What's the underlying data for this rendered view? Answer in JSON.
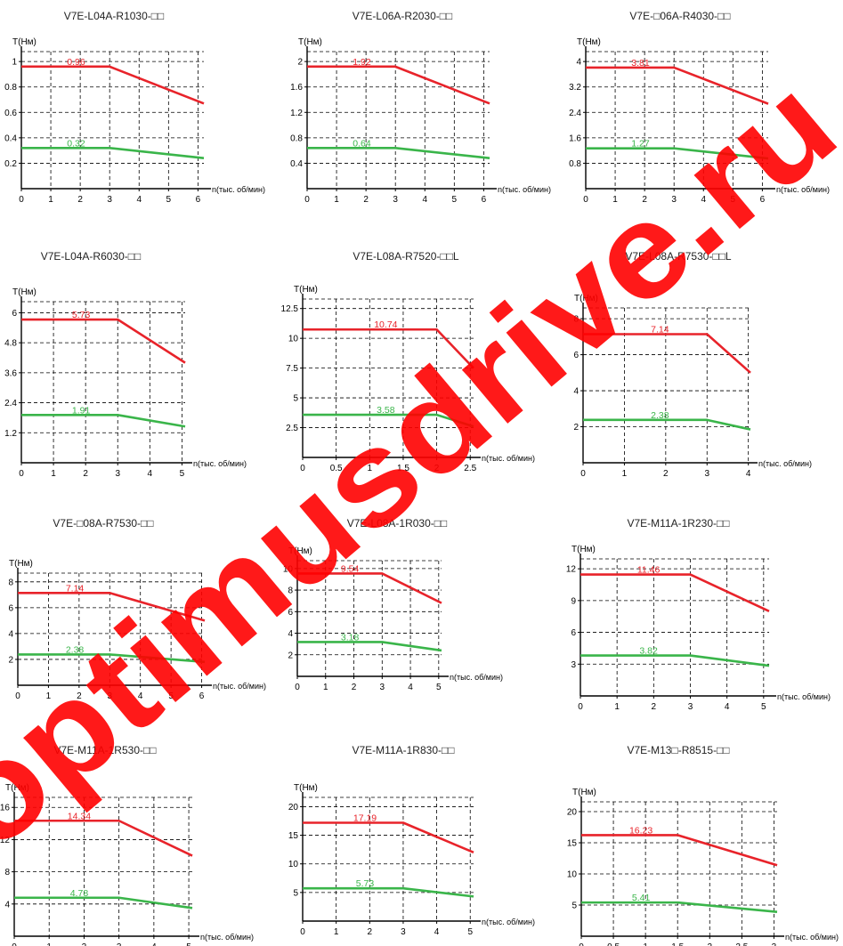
{
  "colors": {
    "upper_curve": "#e8232a",
    "lower_curve": "#3ab54a",
    "axis": "#000000",
    "grid": "#000000",
    "title": "#222222",
    "watermark": "#ff0000"
  },
  "watermark": {
    "text": "optimusdrive.ru"
  },
  "chart_data": [
    {
      "type": "line",
      "title": "V7E-L04A-R1030-□□",
      "ylabel": "T(Нм)",
      "xlabel": "n(тыс. об/мин)",
      "x_ticks": [
        0,
        1,
        2,
        3,
        4,
        5,
        6
      ],
      "y_ticks": [
        0.2,
        0.4,
        0.6,
        0.8,
        1
      ],
      "xlim": [
        0,
        6.2
      ],
      "ylim": [
        0,
        1.05
      ],
      "series": [
        {
          "color": "red",
          "x": [
            0,
            3,
            6.2
          ],
          "y": [
            0.96,
            0.96,
            0.67
          ]
        },
        {
          "color": "green",
          "x": [
            0,
            3,
            6.2
          ],
          "y": [
            0.32,
            0.32,
            0.24
          ]
        }
      ],
      "annotations": [
        "0.96",
        "0.32"
      ]
    },
    {
      "type": "line",
      "title": "V7E-L06A-R2030-□□",
      "ylabel": "T(Нм)",
      "xlabel": "n(тыс. об/мин)",
      "x_ticks": [
        0,
        1,
        2,
        3,
        4,
        5,
        6
      ],
      "y_ticks": [
        0.4,
        0.8,
        1.2,
        1.6,
        2
      ],
      "xlim": [
        0,
        6.2
      ],
      "ylim": [
        0,
        2.1
      ],
      "series": [
        {
          "color": "red",
          "x": [
            0,
            3,
            6.2
          ],
          "y": [
            1.92,
            1.92,
            1.34
          ]
        },
        {
          "color": "green",
          "x": [
            0,
            3,
            6.2
          ],
          "y": [
            0.64,
            0.64,
            0.48
          ]
        }
      ],
      "annotations": [
        "1.92",
        "0.64"
      ]
    },
    {
      "type": "line",
      "title": "V7E-□06A-R4030-□□",
      "ylabel": "T(Нм)",
      "xlabel": "n(тыс. об/мин)",
      "x_ticks": [
        0,
        1,
        2,
        3,
        4,
        5,
        6
      ],
      "y_ticks": [
        0.8,
        1.6,
        2.4,
        3.2,
        4
      ],
      "xlim": [
        0,
        6.2
      ],
      "ylim": [
        0,
        4.2
      ],
      "series": [
        {
          "color": "red",
          "x": [
            0,
            3,
            6.2
          ],
          "y": [
            3.81,
            3.81,
            2.67
          ]
        },
        {
          "color": "green",
          "x": [
            0,
            3,
            6.2
          ],
          "y": [
            1.27,
            1.27,
            0.95
          ]
        }
      ],
      "annotations": [
        "3.81",
        "1.27"
      ]
    },
    {
      "type": "line",
      "title": "V7E-L04A-R6030-□□",
      "ylabel": "T(Нм)",
      "xlabel": "n(тыс. об/мин)",
      "x_ticks": [
        0,
        1,
        2,
        3,
        4,
        5
      ],
      "y_ticks": [
        1.2,
        2.4,
        3.6,
        4.8,
        6
      ],
      "xlim": [
        0,
        5.1
      ],
      "ylim": [
        0,
        6.3
      ],
      "series": [
        {
          "color": "red",
          "x": [
            0,
            3,
            5.1
          ],
          "y": [
            5.73,
            5.73,
            4.0
          ]
        },
        {
          "color": "green",
          "x": [
            0,
            3,
            5.1
          ],
          "y": [
            1.91,
            1.91,
            1.45
          ]
        }
      ],
      "annotations": [
        "5.73",
        "1.91"
      ]
    },
    {
      "type": "line",
      "title": "V7E-L08A-R7520-□□L",
      "ylabel": "T(Нм)",
      "xlabel": "n(тыс. об/мин)",
      "x_ticks": [
        0,
        0.5,
        1,
        1.5,
        2,
        2.5
      ],
      "y_ticks": [
        2.5,
        5,
        7.5,
        10,
        12.5
      ],
      "xlim": [
        0,
        2.55
      ],
      "ylim": [
        0,
        13
      ],
      "series": [
        {
          "color": "red",
          "x": [
            0,
            2,
            2.55
          ],
          "y": [
            10.74,
            10.74,
            7.5
          ]
        },
        {
          "color": "green",
          "x": [
            0,
            2,
            2.55
          ],
          "y": [
            3.58,
            3.58,
            2.6
          ]
        }
      ],
      "annotations": [
        "10.74",
        "3.58"
      ]
    },
    {
      "type": "line",
      "title": "V7E-L08A-R7530-□□L",
      "ylabel": "T(Нм)",
      "xlabel": "n(тыс. об/мин)",
      "x_ticks": [
        0,
        1,
        2,
        3,
        4
      ],
      "y_ticks": [
        2,
        4,
        6,
        8
      ],
      "xlim": [
        0,
        4.05
      ],
      "ylim": [
        0,
        8.4
      ],
      "series": [
        {
          "color": "red",
          "x": [
            0,
            3,
            4.05
          ],
          "y": [
            7.14,
            7.14,
            5.0
          ]
        },
        {
          "color": "green",
          "x": [
            0,
            3,
            4.05
          ],
          "y": [
            2.38,
            2.38,
            1.85
          ]
        }
      ],
      "annotations": [
        "7.14",
        "2.38"
      ]
    },
    {
      "type": "line",
      "title": "V7E-□08A-R7530-□□",
      "ylabel": "T(Нм)",
      "xlabel": "n(тыс. об/мин)",
      "x_ticks": [
        0,
        1,
        2,
        3,
        4,
        5,
        6
      ],
      "y_ticks": [
        2,
        4,
        6,
        8
      ],
      "xlim": [
        0,
        6.1
      ],
      "ylim": [
        0,
        8.4
      ],
      "series": [
        {
          "color": "red",
          "x": [
            0,
            3,
            6.1
          ],
          "y": [
            7.14,
            7.14,
            5.0
          ]
        },
        {
          "color": "green",
          "x": [
            0,
            3,
            6.1
          ],
          "y": [
            2.38,
            2.38,
            1.8
          ]
        }
      ],
      "annotations": [
        "7.14",
        "2.38"
      ]
    },
    {
      "type": "line",
      "title": "V7E-L08A-1R030-□□",
      "ylabel": "T(Нм)",
      "xlabel": "n(тыс. об/мин)",
      "x_ticks": [
        0,
        1,
        2,
        3,
        4,
        5
      ],
      "y_ticks": [
        2,
        4,
        6,
        8,
        10
      ],
      "xlim": [
        0,
        5.1
      ],
      "ylim": [
        0,
        10.4
      ],
      "series": [
        {
          "color": "red",
          "x": [
            0,
            3,
            5.1
          ],
          "y": [
            9.54,
            9.54,
            6.8
          ]
        },
        {
          "color": "green",
          "x": [
            0,
            3,
            5.1
          ],
          "y": [
            3.18,
            3.18,
            2.4
          ]
        }
      ],
      "annotations": [
        "9.54",
        "3.18"
      ]
    },
    {
      "type": "line",
      "title": "V7E-M11A-1R230-□□",
      "ylabel": "T(Нм)",
      "xlabel": "n(тыс. об/мин)",
      "x_ticks": [
        0,
        1,
        2,
        3,
        4,
        5
      ],
      "y_ticks": [
        3,
        6,
        9,
        12
      ],
      "xlim": [
        0,
        5.15
      ],
      "ylim": [
        0,
        12.6
      ],
      "series": [
        {
          "color": "red",
          "x": [
            0,
            3,
            5.15
          ],
          "y": [
            11.46,
            11.46,
            8.0
          ]
        },
        {
          "color": "green",
          "x": [
            0,
            3,
            5.15
          ],
          "y": [
            3.82,
            3.82,
            2.85
          ]
        }
      ],
      "annotations": [
        "11.46",
        "3.82"
      ]
    },
    {
      "type": "line",
      "title": "V7E-M11A-1R530-□□",
      "ylabel": "T(Нм)",
      "xlabel": "n(тыс. об/мин)",
      "x_ticks": [
        0,
        1,
        2,
        3,
        4,
        5
      ],
      "y_ticks": [
        4,
        8,
        12,
        16
      ],
      "xlim": [
        0,
        5.1
      ],
      "ylim": [
        0,
        16.8
      ],
      "series": [
        {
          "color": "red",
          "x": [
            0,
            3,
            5.1
          ],
          "y": [
            14.34,
            14.34,
            10.0
          ]
        },
        {
          "color": "green",
          "x": [
            0,
            3,
            5.1
          ],
          "y": [
            4.78,
            4.78,
            3.5
          ]
        }
      ],
      "annotations": [
        "14.34",
        "4.78"
      ]
    },
    {
      "type": "line",
      "title": "V7E-M11A-1R830-□□",
      "ylabel": "T(Нм)",
      "xlabel": "n(тыс. об/мин)",
      "x_ticks": [
        0,
        1,
        2,
        3,
        4,
        5
      ],
      "y_ticks": [
        5,
        10,
        15,
        20
      ],
      "xlim": [
        0,
        5.1
      ],
      "ylim": [
        0,
        21
      ],
      "series": [
        {
          "color": "red",
          "x": [
            0,
            3,
            5.1
          ],
          "y": [
            17.19,
            17.19,
            12.0
          ]
        },
        {
          "color": "green",
          "x": [
            0,
            3,
            5.1
          ],
          "y": [
            5.73,
            5.73,
            4.3
          ]
        }
      ],
      "annotations": [
        "17.19",
        "5.73"
      ]
    },
    {
      "type": "line",
      "title": "V7E-M13□-R8515-□□",
      "ylabel": "T(Нм)",
      "xlabel": "n(тыс. об/мин)",
      "x_ticks": [
        0,
        0.5,
        1,
        1.5,
        2,
        2.5,
        3
      ],
      "y_ticks": [
        5,
        10,
        15,
        20
      ],
      "xlim": [
        0,
        3.05
      ],
      "ylim": [
        0,
        21
      ],
      "series": [
        {
          "color": "red",
          "x": [
            0,
            1.5,
            3.05
          ],
          "y": [
            16.23,
            16.23,
            11.4
          ]
        },
        {
          "color": "green",
          "x": [
            0,
            1.5,
            3.05
          ],
          "y": [
            5.41,
            5.41,
            3.9
          ]
        }
      ],
      "annotations": [
        "16.23",
        "5.41"
      ]
    }
  ]
}
